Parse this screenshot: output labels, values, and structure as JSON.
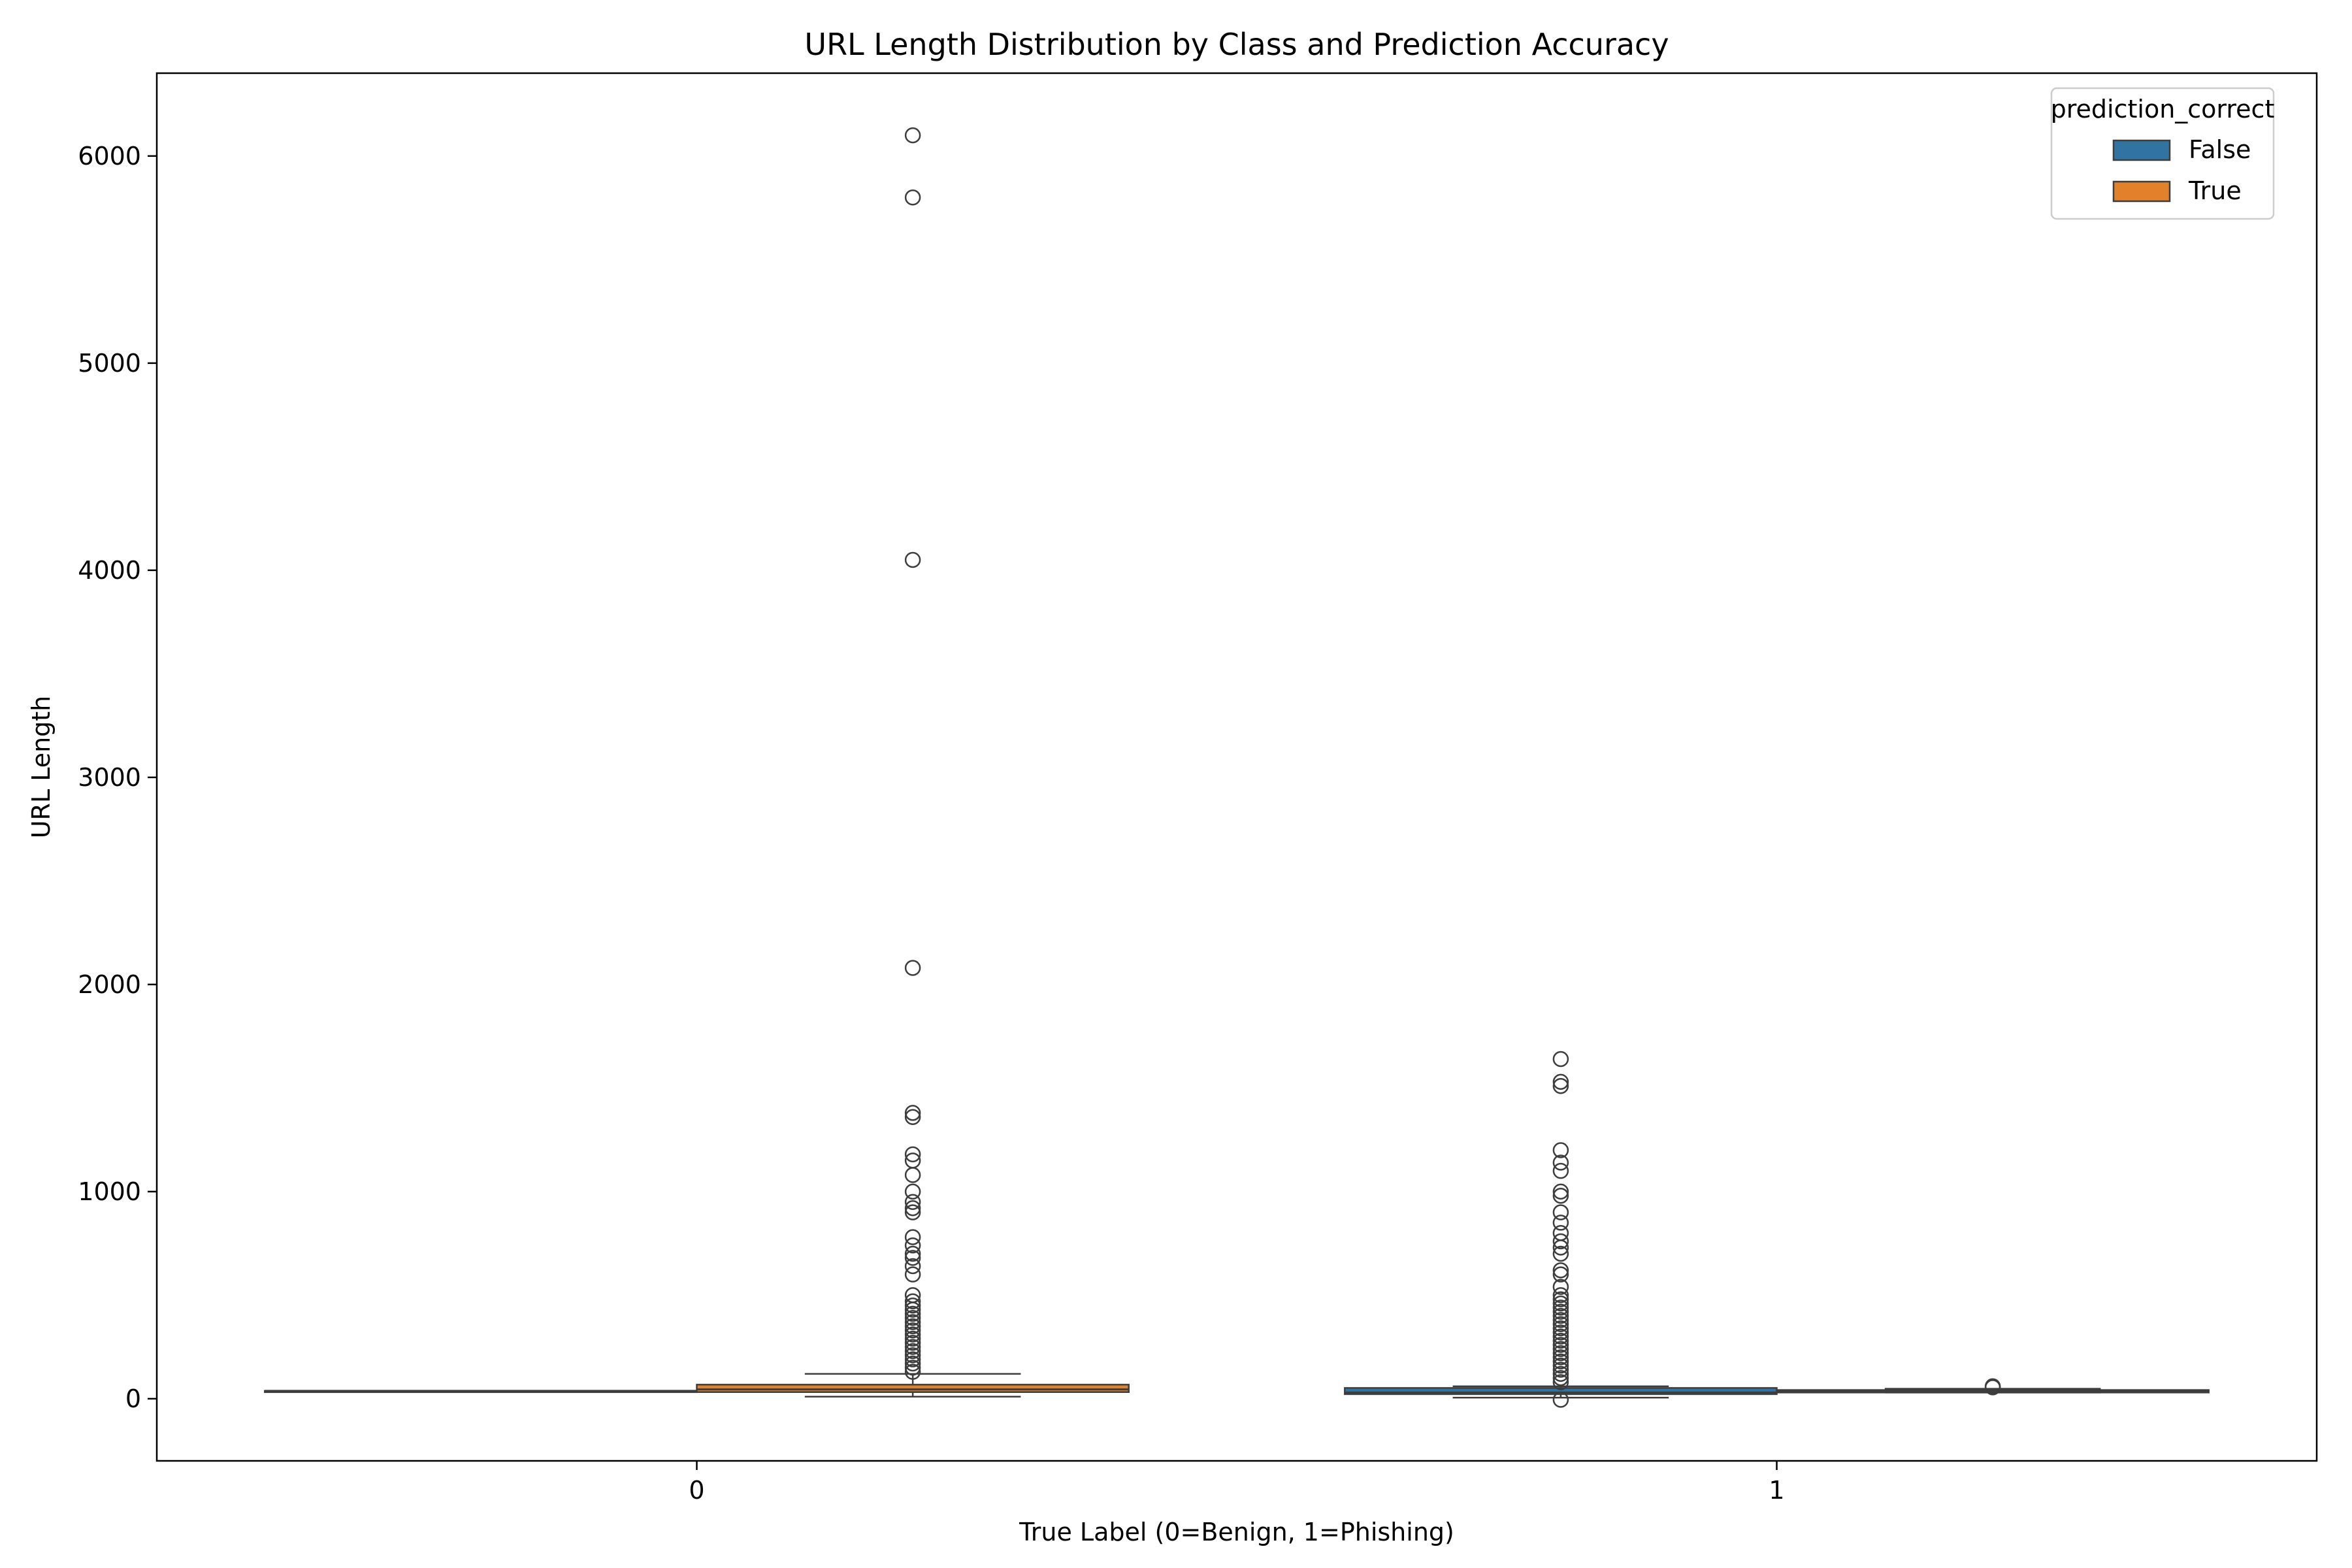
{
  "chart_data": {
    "type": "box",
    "title": "URL Length Distribution by Class and Prediction Accuracy",
    "xlabel": "True Label (0=Benign, 1=Phishing)",
    "ylabel": "URL Length",
    "categories": [
      "0",
      "1"
    ],
    "ylim": [
      -300,
      6400
    ],
    "yticks": [
      0,
      1000,
      2000,
      3000,
      4000,
      5000,
      6000
    ],
    "grid": false,
    "legend": {
      "title": "prediction_correct",
      "position": "top-right"
    },
    "series": [
      {
        "name": "False",
        "color": "#3274a1",
        "boxes": [
          {
            "category": "0",
            "min": 38,
            "q1": 38,
            "median": 38,
            "q3": 38,
            "max": 38,
            "outliers": []
          },
          {
            "category": "1",
            "min": 5,
            "q1": 22,
            "median": 30,
            "q3": 52,
            "max": 60,
            "outliers": [
              -5,
              80,
              100,
              120,
              140,
              160,
              180,
              200,
              220,
              240,
              260,
              280,
              300,
              320,
              340,
              360,
              380,
              400,
              420,
              440,
              460,
              480,
              500,
              540,
              600,
              620,
              700,
              730,
              760,
              800,
              850,
              900,
              980,
              1000,
              1100,
              1140,
              1200,
              1510,
              1530,
              1640
            ]
          }
        ]
      },
      {
        "name": "True",
        "color": "#e1812c",
        "boxes": [
          {
            "category": "0",
            "min": 10,
            "q1": 32,
            "median": 45,
            "q3": 68,
            "max": 120,
            "outliers": [
              130,
              150,
              170,
              190,
              210,
              230,
              250,
              270,
              290,
              310,
              330,
              350,
              370,
              390,
              410,
              430,
              450,
              470,
              500,
              600,
              640,
              680,
              700,
              740,
              780,
              900,
              920,
              950,
              1000,
              1080,
              1150,
              1180,
              1360,
              1380,
              2080,
              4050,
              5800,
              6100
            ]
          },
          {
            "category": "1",
            "min": 30,
            "q1": 30,
            "median": 35,
            "q3": 42,
            "max": 48,
            "outliers": [
              55,
              60
            ]
          }
        ]
      }
    ]
  }
}
